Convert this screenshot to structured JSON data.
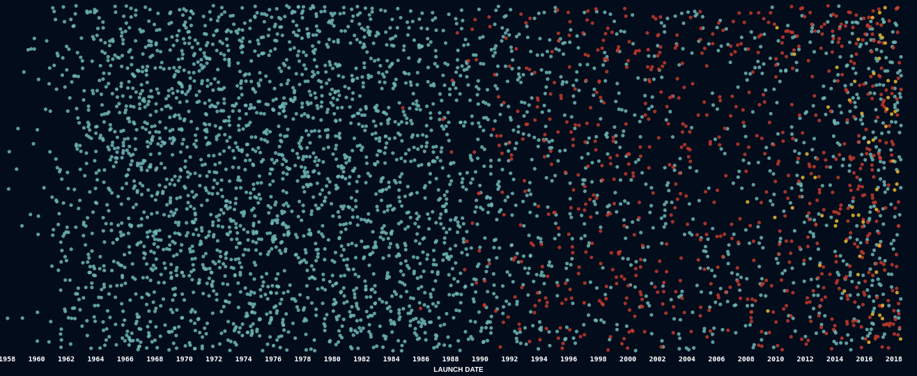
{
  "chart_data": {
    "type": "scatter",
    "title": "",
    "xlabel": "LAUNCH DATE",
    "ylabel": "",
    "xlim": [
      1957.9,
      2018.9
    ],
    "x_ticks": [
      "1958",
      "1960",
      "1962",
      "1964",
      "1966",
      "1968",
      "1970",
      "1972",
      "1974",
      "1976",
      "1978",
      "1980",
      "1982",
      "1984",
      "1986",
      "1988",
      "1990",
      "1992",
      "1994",
      "1996",
      "1998",
      "2000",
      "2002",
      "2004",
      "2006",
      "2008",
      "2010",
      "2012",
      "2014",
      "2016",
      "2018"
    ],
    "grid": false,
    "legend": "none",
    "colors": {
      "background": "#020c1b",
      "teal": "#6fb6b4",
      "red": "#c0392b",
      "yellow": "#e8b830"
    },
    "series": [
      {
        "color_key": "teal",
        "density_by_year": [
          [
            1958,
            3
          ],
          [
            1959,
            6
          ],
          [
            1960,
            12
          ],
          [
            1961,
            25
          ],
          [
            1962,
            45
          ],
          [
            1963,
            55
          ],
          [
            1964,
            70
          ],
          [
            1965,
            80
          ],
          [
            1966,
            95
          ],
          [
            1967,
            100
          ],
          [
            1968,
            100
          ],
          [
            1969,
            98
          ],
          [
            1970,
            100
          ],
          [
            1971,
            102
          ],
          [
            1972,
            100
          ],
          [
            1973,
            98
          ],
          [
            1974,
            100
          ],
          [
            1975,
            100
          ],
          [
            1976,
            102
          ],
          [
            1977,
            100
          ],
          [
            1978,
            100
          ],
          [
            1979,
            98
          ],
          [
            1980,
            96
          ],
          [
            1981,
            95
          ],
          [
            1982,
            92
          ],
          [
            1983,
            90
          ],
          [
            1984,
            88
          ],
          [
            1985,
            85
          ],
          [
            1986,
            82
          ],
          [
            1987,
            78
          ],
          [
            1988,
            72
          ],
          [
            1989,
            62
          ],
          [
            1990,
            58
          ],
          [
            1991,
            52
          ],
          [
            1992,
            48
          ],
          [
            1993,
            44
          ],
          [
            1994,
            40
          ],
          [
            1995,
            36
          ],
          [
            1996,
            32
          ],
          [
            1997,
            30
          ],
          [
            1998,
            28
          ],
          [
            1999,
            27
          ],
          [
            2000,
            26
          ],
          [
            2001,
            24
          ],
          [
            2002,
            24
          ],
          [
            2003,
            23
          ],
          [
            2004,
            22
          ],
          [
            2005,
            22
          ],
          [
            2006,
            22
          ],
          [
            2007,
            22
          ],
          [
            2008,
            24
          ],
          [
            2009,
            24
          ],
          [
            2010,
            24
          ],
          [
            2011,
            25
          ],
          [
            2012,
            27
          ],
          [
            2013,
            30
          ],
          [
            2014,
            34
          ],
          [
            2015,
            40
          ],
          [
            2016,
            48
          ],
          [
            2017,
            65
          ],
          [
            2018,
            50
          ]
        ]
      },
      {
        "color_key": "red",
        "density_by_year": [
          [
            1985,
            1
          ],
          [
            1986,
            1
          ],
          [
            1987,
            1
          ],
          [
            1988,
            3
          ],
          [
            1989,
            5
          ],
          [
            1990,
            10
          ],
          [
            1991,
            12
          ],
          [
            1992,
            14
          ],
          [
            1993,
            18
          ],
          [
            1994,
            20
          ],
          [
            1995,
            22
          ],
          [
            1996,
            24
          ],
          [
            1997,
            25
          ],
          [
            1998,
            26
          ],
          [
            1999,
            27
          ],
          [
            2000,
            28
          ],
          [
            2001,
            27
          ],
          [
            2002,
            25
          ],
          [
            2003,
            23
          ],
          [
            2004,
            22
          ],
          [
            2005,
            20
          ],
          [
            2006,
            20
          ],
          [
            2007,
            20
          ],
          [
            2008,
            22
          ],
          [
            2009,
            23
          ],
          [
            2010,
            25
          ],
          [
            2011,
            27
          ],
          [
            2012,
            30
          ],
          [
            2013,
            32
          ],
          [
            2014,
            35
          ],
          [
            2015,
            40
          ],
          [
            2016,
            45
          ],
          [
            2017,
            55
          ],
          [
            2018,
            40
          ]
        ]
      },
      {
        "color_key": "yellow",
        "density_by_year": [
          [
            2008,
            1
          ],
          [
            2009,
            1
          ],
          [
            2010,
            2
          ],
          [
            2011,
            2
          ],
          [
            2012,
            2
          ],
          [
            2013,
            3
          ],
          [
            2014,
            4
          ],
          [
            2015,
            6
          ],
          [
            2016,
            8
          ],
          [
            2017,
            18
          ],
          [
            2018,
            12
          ]
        ]
      }
    ]
  }
}
